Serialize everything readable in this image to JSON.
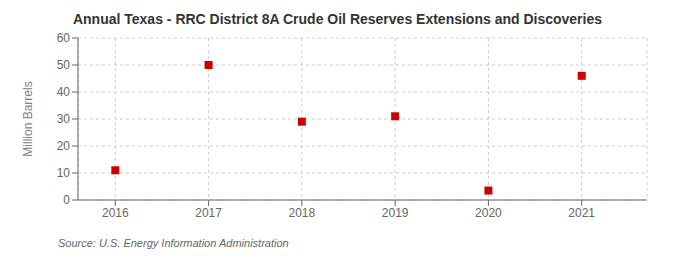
{
  "chart_data": {
    "type": "scatter",
    "title": "Annual Texas - RRC District 8A Crude Oil Reserves Extensions and Discoveries",
    "ylabel": "Million Barrels",
    "annotations": [
      "Source: U.S. Energy Information Administration"
    ],
    "x": [
      2016,
      2017,
      2018,
      2019,
      2020,
      2021
    ],
    "values": [
      11.0,
      50.0,
      29.0,
      31.0,
      3.5,
      46.0
    ],
    "color": "#cc0000",
    "marker": "square",
    "xlim": [
      2015.6,
      2021.7
    ],
    "xticks": [
      2016,
      2017,
      2018,
      2019,
      2020,
      2021
    ],
    "ylim": [
      0,
      60
    ],
    "yticks": [
      0,
      10,
      20,
      30,
      40,
      50,
      60
    ],
    "grid": true
  }
}
